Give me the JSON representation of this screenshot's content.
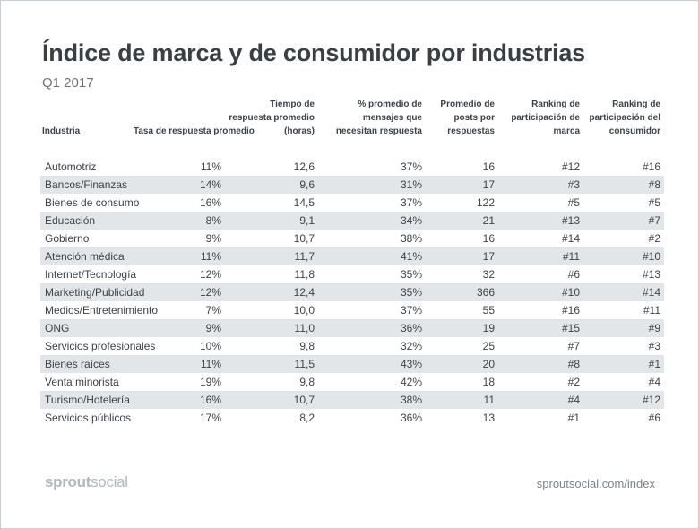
{
  "title": "Índice de marca y de consumidor por industrias",
  "subtitle": "Q1 2017",
  "table": {
    "headers": [
      "Industria",
      "Tasa de respuesta promedio",
      "Tiempo de respuesta promedio (horas)",
      "% promedio de mensajes que necesitan respuesta",
      "Promedio de posts por respuestas",
      "Ranking de participación de marca",
      "Ranking de participación del consumidor"
    ],
    "rows": [
      [
        "Automotriz",
        "11%",
        "12,6",
        "37%",
        "16",
        "#12",
        "#16"
      ],
      [
        "Bancos/Finanzas",
        "14%",
        "9,6",
        "31%",
        "17",
        "#3",
        "#8"
      ],
      [
        "Bienes de consumo",
        "16%",
        "14,5",
        "37%",
        "122",
        "#5",
        "#5"
      ],
      [
        "Educación",
        "8%",
        "9,1",
        "34%",
        "21",
        "#13",
        "#7"
      ],
      [
        "Gobierno",
        "9%",
        "10,7",
        "38%",
        "16",
        "#14",
        "#2"
      ],
      [
        "Atención médica",
        "11%",
        "11,7",
        "41%",
        "17",
        "#11",
        "#10"
      ],
      [
        "Internet/Tecnología",
        "12%",
        "11,8",
        "35%",
        "32",
        "#6",
        "#13"
      ],
      [
        "Marketing/Publicidad",
        "12%",
        "12,4",
        "35%",
        "366",
        "#10",
        "#14"
      ],
      [
        "Medios/Entretenimiento",
        "7%",
        "10,0",
        "37%",
        "55",
        "#16",
        "#11"
      ],
      [
        "ONG",
        "9%",
        "11,0",
        "36%",
        "19",
        "#15",
        "#9"
      ],
      [
        "Servicios profesionales",
        "10%",
        "9,8",
        "32%",
        "25",
        "#7",
        "#3"
      ],
      [
        "Bienes raíces",
        "11%",
        "11,5",
        "43%",
        "20",
        "#8",
        "#1"
      ],
      [
        "Venta minorista",
        "19%",
        "9,8",
        "42%",
        "18",
        "#2",
        "#4"
      ],
      [
        "Turismo/Hotelería",
        "16%",
        "10,7",
        "38%",
        "11",
        "#4",
        "#12"
      ],
      [
        "Servicios públicos",
        "17%",
        "8,2",
        "36%",
        "13",
        "#1",
        "#6"
      ]
    ]
  },
  "footer": {
    "logo_bold": "sprout",
    "logo_light": "social",
    "url": "sproutsocial.com/index"
  },
  "colors": {
    "stripe": "#e3e6e8",
    "text": "#3d4247",
    "logo": "#b3b8bc"
  }
}
